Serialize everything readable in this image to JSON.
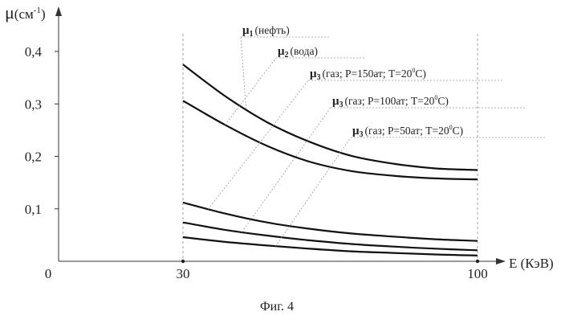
{
  "chart_data": {
    "type": "line",
    "caption": "Фиг. 4",
    "xlabel": "E (КэВ)",
    "ylabel_main": "μ",
    "ylabel_unit": "(см",
    "ylabel_exp": "-1",
    "ylabel_close": ")",
    "xlim": [
      0,
      100
    ],
    "ylim": [
      0,
      0.4
    ],
    "x_ticks": [
      {
        "value": 0,
        "label": "0"
      },
      {
        "value": 30,
        "label": "30"
      },
      {
        "value": 100,
        "label": "100"
      }
    ],
    "y_ticks": [
      {
        "value": 0.1,
        "label": "0,1"
      },
      {
        "value": 0.2,
        "label": "0,2"
      },
      {
        "value": 0.3,
        "label": "0,3"
      },
      {
        "value": 0.4,
        "label": "0,4"
      }
    ],
    "series": [
      {
        "name": "μ1 (нефть)",
        "sym": "μ",
        "sub": "1",
        "desc": "(нефть)",
        "x": [
          30,
          40,
          50,
          60,
          70,
          80,
          90,
          100
        ],
        "y": [
          0.375,
          0.315,
          0.265,
          0.228,
          0.201,
          0.186,
          0.177,
          0.174
        ]
      },
      {
        "name": "μ2 (вода)",
        "sym": "μ",
        "sub": "2",
        "desc": "(вода)",
        "x": [
          30,
          40,
          50,
          60,
          70,
          80,
          90,
          100
        ],
        "y": [
          0.306,
          0.26,
          0.22,
          0.19,
          0.172,
          0.163,
          0.158,
          0.156
        ]
      },
      {
        "name": "μ3 (газ; P=150ат; T=20°C)",
        "sym": "μ",
        "sub": "3",
        "desc": "(газ; P=150ат; T=20",
        "deg": "0",
        "descEnd": "C)",
        "x": [
          30,
          40,
          50,
          60,
          70,
          80,
          90,
          100
        ],
        "y": [
          0.112,
          0.091,
          0.074,
          0.062,
          0.053,
          0.047,
          0.042,
          0.039
        ]
      },
      {
        "name": "μ3 (газ; P=100ат; T=20°C)",
        "sym": "μ",
        "sub": "3",
        "desc": "(газ; P=100ат; T=20",
        "deg": "0",
        "descEnd": "C)",
        "x": [
          30,
          40,
          50,
          60,
          70,
          80,
          90,
          100
        ],
        "y": [
          0.074,
          0.06,
          0.049,
          0.04,
          0.033,
          0.028,
          0.024,
          0.021
        ]
      },
      {
        "name": "μ3 (газ; P=50ат; T=20°C)",
        "sym": "μ",
        "sub": "3",
        "desc": "(газ; P=50ат; T=20",
        "deg": "0",
        "descEnd": "C)",
        "x": [
          30,
          40,
          50,
          60,
          70,
          80,
          90,
          100
        ],
        "y": [
          0.046,
          0.037,
          0.03,
          0.024,
          0.019,
          0.016,
          0.013,
          0.011
        ]
      }
    ]
  }
}
